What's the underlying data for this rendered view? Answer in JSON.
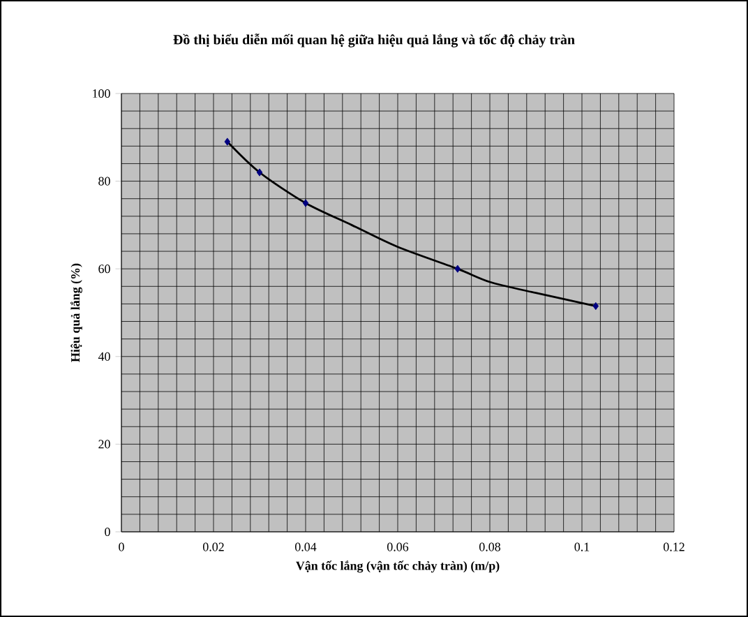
{
  "chart_data": {
    "type": "scatter",
    "title": "Đồ thị biểu diễn mối quan hệ giữa hiệu quả lắng và tốc độ chảy tràn",
    "xlabel": "Vận tốc lắng (vận tốc chảy tràn) (m/p)",
    "ylabel": "Hiệu quả lắng (%)",
    "xlim": [
      0,
      0.12
    ],
    "ylim": [
      0,
      100
    ],
    "xticks": [
      0,
      0.02,
      0.04,
      0.06,
      0.08,
      0.1,
      0.12
    ],
    "yticks": [
      0,
      20,
      40,
      60,
      80,
      100
    ],
    "grid": true,
    "series": [
      {
        "color": "#000080",
        "marker": "diamond",
        "x": [
          0.023,
          0.03,
          0.04,
          0.073,
          0.103
        ],
        "values": [
          89,
          82,
          75,
          60,
          51.5
        ]
      },
      {
        "type": "line",
        "color": "#000000",
        "marker": "none",
        "line_style": "solid",
        "x": [
          0.023,
          0.03,
          0.04,
          0.05,
          0.06,
          0.073,
          0.08,
          0.09,
          0.103
        ],
        "values": [
          89,
          82,
          75,
          70,
          65,
          60,
          57,
          54.5,
          51.5
        ]
      }
    ]
  }
}
